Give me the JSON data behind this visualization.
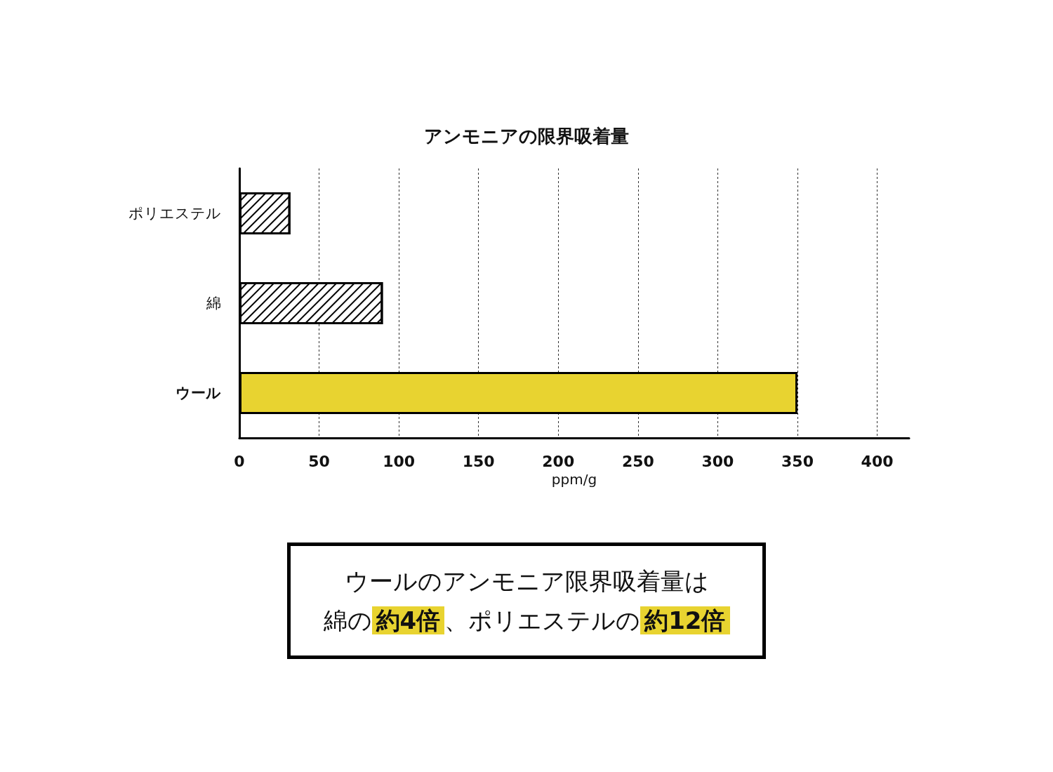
{
  "chart_data": {
    "type": "bar",
    "orientation": "horizontal",
    "title": "アンモニアの限界吸着量",
    "categories": [
      "ポリエステル",
      "綿",
      "ウール"
    ],
    "values": [
      32,
      90,
      350
    ],
    "colors": [
      "#ffffff",
      "#ffffff",
      "#e8d330"
    ],
    "xlabel": "ppm/g",
    "xlim": [
      0,
      420
    ],
    "xticks": [
      0,
      50,
      100,
      150,
      200,
      250,
      300,
      350,
      400
    ],
    "grid": "x",
    "annotations": [
      "ウールのアンモニア限界吸着量は",
      "綿の",
      "約4倍",
      "、ポリエステルの",
      "約12倍"
    ]
  }
}
